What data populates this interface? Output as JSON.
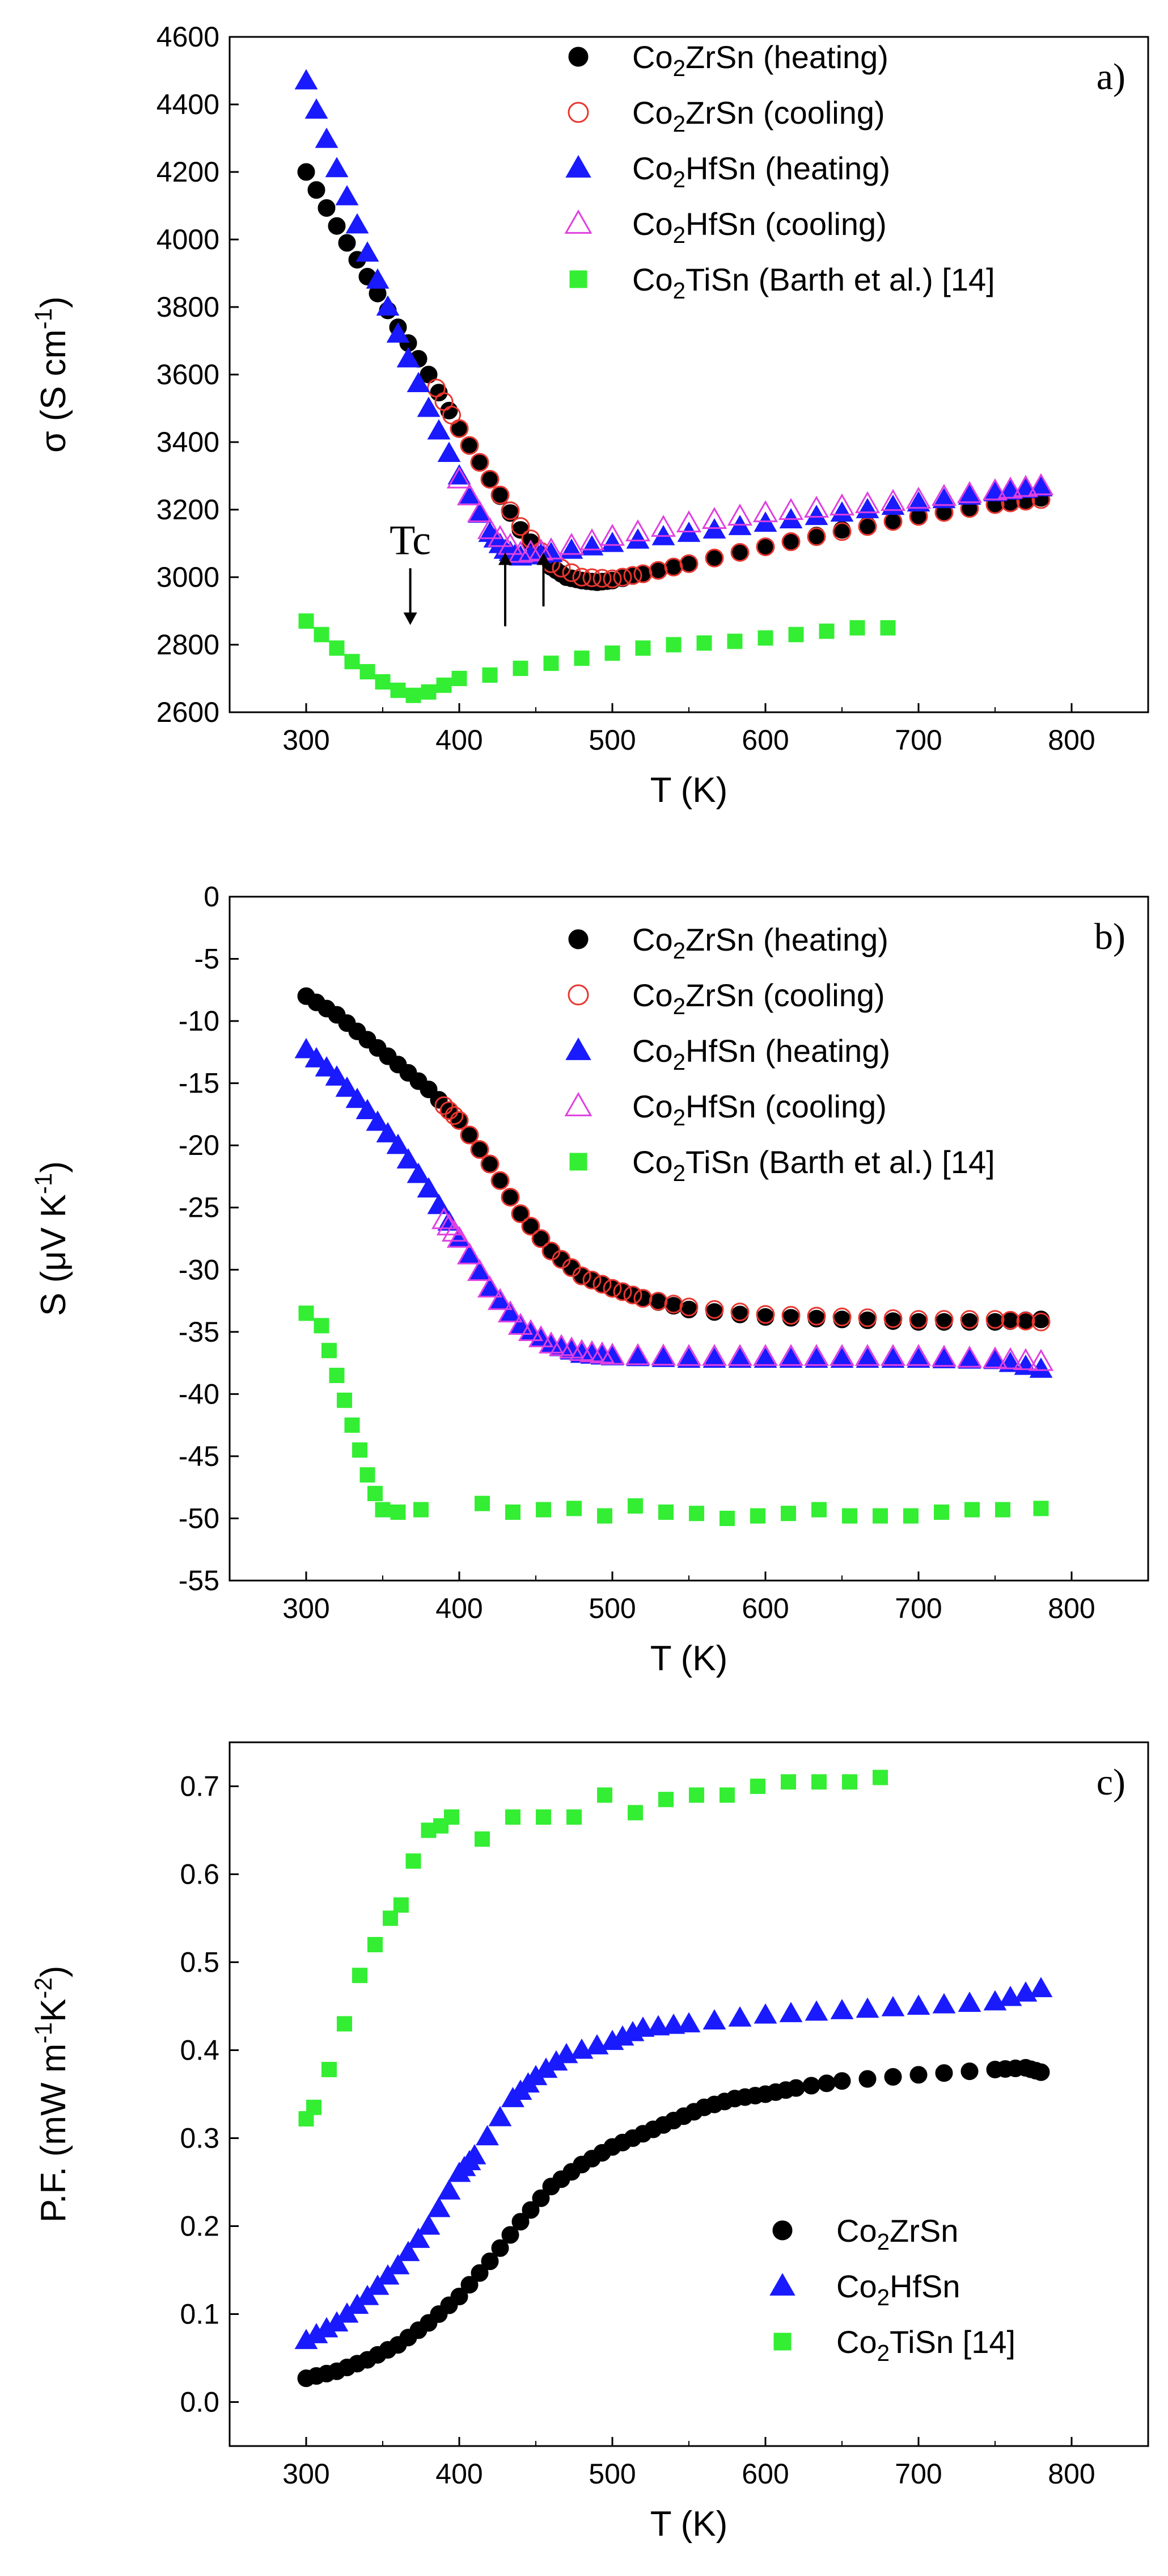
{
  "chart_data": [
    {
      "type": "scatter",
      "panel_label": "a)",
      "xlabel": "T (K)",
      "ylabel": "σ (S cm⁻¹)",
      "xlim": [
        250,
        850
      ],
      "ylim": [
        2600,
        4600
      ],
      "xticks": [
        300,
        400,
        500,
        600,
        700,
        800
      ],
      "yticks": [
        2600,
        2800,
        3000,
        3200,
        3400,
        3600,
        3800,
        4000,
        4200,
        4400,
        4600
      ],
      "legend_position": "top-right",
      "annotations": [
        {
          "text": "Tc",
          "x": 368,
          "y": 2850
        },
        {
          "text": "",
          "x": 430,
          "y": 3090
        },
        {
          "text": "",
          "x": 455,
          "y": 3090
        }
      ],
      "series": [
        {
          "name": "Co₂ZrSn (heating)",
          "marker": "circle",
          "filled": true,
          "color": "#000000",
          "x": [
            300,
            320,
            340,
            360,
            380,
            400,
            420,
            440,
            460,
            470,
            480,
            490,
            500,
            520,
            550,
            600,
            650,
            700,
            750,
            780
          ],
          "y": [
            4200,
            4040,
            3890,
            3740,
            3600,
            3440,
            3290,
            3140,
            3030,
            3000,
            2990,
            2985,
            2990,
            3010,
            3040,
            3090,
            3140,
            3180,
            3215,
            3235
          ]
        },
        {
          "name": "Co₂ZrSn (cooling)",
          "marker": "circle",
          "filled": false,
          "color": "#e8362f",
          "x": [
            385,
            400,
            420,
            440,
            460,
            480,
            500,
            520,
            550,
            600,
            650,
            700,
            750,
            780
          ],
          "y": [
            3560,
            3440,
            3290,
            3150,
            3040,
            3000,
            2995,
            3010,
            3040,
            3090,
            3135,
            3180,
            3215,
            3230
          ]
        },
        {
          "name": "Co₂HfSn (heating)",
          "marker": "triangle",
          "filled": true,
          "color": "#1a1aff",
          "x": [
            300,
            320,
            340,
            360,
            380,
            400,
            420,
            430,
            440,
            460,
            500,
            550,
            600,
            650,
            700,
            750,
            780
          ],
          "y": [
            4470,
            4210,
            3960,
            3720,
            3500,
            3300,
            3130,
            3080,
            3060,
            3070,
            3100,
            3130,
            3160,
            3190,
            3220,
            3250,
            3265
          ]
        },
        {
          "name": "Co₂HfSn (cooling)",
          "marker": "triangle",
          "filled": false,
          "color": "#e040e0",
          "x": [
            400,
            420,
            440,
            460,
            500,
            550,
            600,
            650,
            700,
            750,
            780
          ],
          "y": [
            3290,
            3140,
            3070,
            3080,
            3120,
            3160,
            3190,
            3210,
            3230,
            3255,
            3270
          ]
        },
        {
          "name": "Co₂TiSn (Barth et al.) [14]",
          "marker": "square",
          "filled": true,
          "color": "#33ee33",
          "x": [
            300,
            310,
            320,
            330,
            340,
            350,
            360,
            370,
            380,
            390,
            400,
            420,
            440,
            460,
            480,
            500,
            520,
            540,
            560,
            580,
            600,
            620,
            640,
            660,
            680
          ],
          "y": [
            2870,
            2830,
            2790,
            2750,
            2720,
            2690,
            2665,
            2650,
            2660,
            2680,
            2700,
            2710,
            2730,
            2745,
            2760,
            2775,
            2790,
            2800,
            2805,
            2810,
            2820,
            2830,
            2840,
            2850,
            2850
          ]
        }
      ]
    },
    {
      "type": "scatter",
      "panel_label": "b)",
      "xlabel": "T (K)",
      "ylabel": "S (μV K⁻¹)",
      "xlim": [
        250,
        850
      ],
      "ylim": [
        -55,
        0
      ],
      "xticks": [
        300,
        400,
        500,
        600,
        700,
        800
      ],
      "yticks": [
        -55,
        -50,
        -45,
        -40,
        -35,
        -30,
        -25,
        -20,
        -15,
        -10,
        -5,
        0
      ],
      "legend_position": "top-right",
      "series": [
        {
          "name": "Co₂ZrSn (heating)",
          "marker": "circle",
          "filled": true,
          "color": "#000000",
          "x": [
            300,
            320,
            340,
            360,
            380,
            400,
            420,
            440,
            460,
            480,
            500,
            520,
            550,
            600,
            650,
            700,
            750,
            780
          ],
          "y": [
            -8,
            -9.5,
            -11.5,
            -13.5,
            -15.5,
            -18,
            -21.5,
            -25.5,
            -28.5,
            -30.5,
            -31.5,
            -32.3,
            -33.2,
            -33.8,
            -34,
            -34.2,
            -34.2,
            -34
          ]
        },
        {
          "name": "Co₂ZrSn (cooling)",
          "marker": "circle",
          "filled": false,
          "color": "#e8362f",
          "x": [
            390,
            400,
            420,
            440,
            460,
            480,
            500,
            520,
            550,
            600,
            650,
            700,
            750,
            780
          ],
          "y": [
            -16.8,
            -18,
            -21.5,
            -25.5,
            -28.5,
            -30.5,
            -31.5,
            -32.3,
            -33,
            -33.6,
            -33.8,
            -34,
            -34,
            -34.2
          ]
        },
        {
          "name": "Co₂HfSn (heating)",
          "marker": "triangle",
          "filled": true,
          "color": "#1a1aff",
          "x": [
            300,
            320,
            340,
            360,
            380,
            400,
            420,
            440,
            460,
            480,
            500,
            550,
            600,
            650,
            700,
            750,
            780
          ],
          "y": [
            -12.3,
            -14.5,
            -17.2,
            -20,
            -23.5,
            -27.5,
            -31.5,
            -34.5,
            -36,
            -36.8,
            -37,
            -37.2,
            -37.2,
            -37.2,
            -37.2,
            -37.3,
            -38
          ]
        },
        {
          "name": "Co₂HfSn (cooling)",
          "marker": "triangle",
          "filled": false,
          "color": "#e040e0",
          "x": [
            390,
            400,
            420,
            440,
            460,
            480,
            500,
            550,
            600,
            650,
            700,
            750,
            780
          ],
          "y": [
            -26,
            -27.5,
            -31.5,
            -34.5,
            -36,
            -36.6,
            -36.9,
            -37,
            -37,
            -37,
            -37,
            -37.2,
            -37.4
          ]
        },
        {
          "name": "Co₂TiSn (Barth et al.) [14]",
          "marker": "square",
          "filled": true,
          "color": "#33ee33",
          "x": [
            300,
            310,
            315,
            320,
            325,
            330,
            335,
            340,
            345,
            350,
            360,
            375,
            415,
            435,
            455,
            475,
            495,
            515,
            535,
            555,
            575,
            595,
            615,
            635,
            655,
            675,
            695,
            715,
            735,
            755,
            780
          ],
          "y": [
            -33.5,
            -34.5,
            -36.5,
            -38.5,
            -40.5,
            -42.5,
            -44.5,
            -46.5,
            -48,
            -49.3,
            -49.5,
            -49.3,
            -48.8,
            -49.5,
            -49.3,
            -49.2,
            -49.8,
            -49,
            -49.5,
            -49.6,
            -50,
            -49.8,
            -49.6,
            -49.3,
            -49.8,
            -49.8,
            -49.8,
            -49.5,
            -49.3,
            -49.3,
            -49.2
          ]
        }
      ]
    },
    {
      "type": "scatter",
      "panel_label": "c)",
      "xlabel": "T (K)",
      "ylabel": "P.F. (mW m⁻¹K⁻²)",
      "xlim": [
        250,
        850
      ],
      "ylim": [
        -0.05,
        0.75
      ],
      "xticks": [
        300,
        400,
        500,
        600,
        700,
        800
      ],
      "yticks": [
        0.0,
        0.1,
        0.2,
        0.3,
        0.4,
        0.5,
        0.6,
        0.7
      ],
      "legend_position": "bottom-right",
      "series": [
        {
          "name": "Co₂ZrSn",
          "marker": "circle",
          "filled": true,
          "color": "#000000",
          "x": [
            300,
            320,
            340,
            360,
            380,
            400,
            420,
            440,
            460,
            480,
            500,
            520,
            540,
            560,
            580,
            600,
            620,
            650,
            700,
            750,
            770,
            780
          ],
          "y": [
            0.027,
            0.035,
            0.048,
            0.065,
            0.09,
            0.12,
            0.16,
            0.205,
            0.245,
            0.27,
            0.29,
            0.305,
            0.32,
            0.335,
            0.345,
            0.35,
            0.357,
            0.365,
            0.372,
            0.378,
            0.38,
            0.375
          ]
        },
        {
          "name": "Co₂HfSn",
          "marker": "triangle",
          "filled": true,
          "color": "#1a1aff",
          "x": [
            300,
            320,
            340,
            360,
            380,
            400,
            410,
            435,
            450,
            470,
            500,
            520,
            550,
            600,
            650,
            700,
            750,
            780
          ],
          "y": [
            0.07,
            0.09,
            0.12,
            0.155,
            0.2,
            0.26,
            0.28,
            0.345,
            0.37,
            0.395,
            0.41,
            0.425,
            0.43,
            0.44,
            0.445,
            0.45,
            0.455,
            0.47
          ]
        },
        {
          "name": "Co₂TiSn [14]",
          "marker": "square",
          "filled": true,
          "color": "#33ee33",
          "x": [
            300,
            305,
            315,
            325,
            335,
            345,
            355,
            362,
            370,
            380,
            388,
            395,
            415,
            435,
            455,
            475,
            495,
            515,
            535,
            555,
            575,
            595,
            615,
            635,
            655,
            675
          ],
          "y": [
            0.322,
            0.335,
            0.378,
            0.43,
            0.485,
            0.52,
            0.55,
            0.565,
            0.615,
            0.65,
            0.655,
            0.665,
            0.64,
            0.665,
            0.665,
            0.665,
            0.69,
            0.67,
            0.685,
            0.69,
            0.69,
            0.7,
            0.705,
            0.705,
            0.705,
            0.71
          ]
        }
      ]
    }
  ]
}
